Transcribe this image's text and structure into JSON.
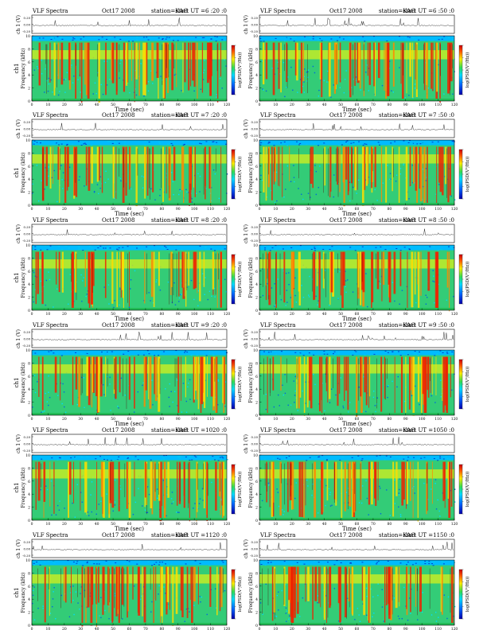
{
  "chart_data": [
    {
      "type": "heatmap",
      "header": {
        "left": "VLF  Spectra",
        "date": "Oct17 2008",
        "station": "station=KAG",
        "start": "start  UT  =6 :20 :0"
      },
      "ylabel_wave": "ch 1 (V)",
      "ylabel_freq": "Frequency (kHz)",
      "ylabel_ch": "ch1",
      "xlabel": "Time  (sec)",
      "colorbar_label": "log(PSD(V²/Hz))",
      "xlim": [
        0,
        120
      ],
      "xticks": [
        "0",
        "10",
        "20",
        "30",
        "40",
        "50",
        "60",
        "70",
        "80",
        "90",
        "100",
        "110",
        "120"
      ],
      "ylim": [
        0,
        10
      ],
      "yticks": [
        "0",
        "2",
        "4",
        "6",
        "8",
        "10"
      ],
      "wave_ticks": [
        "0.20",
        "0.00",
        "-0.20"
      ]
    },
    {
      "type": "heatmap",
      "header": {
        "left": "VLF  Spectra",
        "date": "Oct17 2008",
        "station": "station=KAG",
        "start": "start  UT  =6 :50 :0"
      },
      "ylabel_wave": "ch 1 (V)",
      "ylabel_freq": "Frequency (kHz)",
      "ylabel_ch": "",
      "xlabel": "Time  (sec)",
      "colorbar_label": "log(PSD(V²/Hz))",
      "xlim": [
        0,
        120
      ],
      "xticks": [
        "0",
        "10",
        "20",
        "30",
        "40",
        "50",
        "60",
        "70",
        "80",
        "90",
        "100",
        "110",
        "120"
      ],
      "ylim": [
        0,
        10
      ],
      "yticks": [
        "0",
        "2",
        "4",
        "6",
        "8",
        "10"
      ],
      "wave_ticks": [
        "0.20",
        "0.00",
        "-0.20"
      ]
    },
    {
      "type": "heatmap",
      "header": {
        "left": "VLF  Spectra",
        "date": "Oct17 2008",
        "station": "station=KAG",
        "start": "start  UT  =7 :20 :0"
      },
      "ylabel_wave": "ch 1 (V)",
      "ylabel_freq": "Frequency (kHz)",
      "ylabel_ch": "ch1",
      "xlabel": "Time  (sec)",
      "colorbar_label": "log(PSD(V²/Hz))",
      "xlim": [
        0,
        120
      ],
      "xticks": [
        "0",
        "10",
        "20",
        "30",
        "40",
        "50",
        "60",
        "70",
        "80",
        "90",
        "100",
        "110",
        "120"
      ],
      "ylim": [
        0,
        10
      ],
      "yticks": [
        "0",
        "2",
        "4",
        "6",
        "8",
        "10"
      ],
      "wave_ticks": [
        "0.20",
        "0.00",
        "-0.20"
      ]
    },
    {
      "type": "heatmap",
      "header": {
        "left": "VLF  Spectra",
        "date": "Oct17 2008",
        "station": "station=KAG",
        "start": "start  UT  =7 :50 :0"
      },
      "ylabel_wave": "ch 1 (V)",
      "ylabel_freq": "Frequency (kHz)",
      "ylabel_ch": "",
      "xlabel": "Time  (sec)",
      "colorbar_label": "log(PSD(V²/Hz))",
      "xlim": [
        0,
        120
      ],
      "xticks": [
        "0",
        "10",
        "20",
        "30",
        "40",
        "50",
        "60",
        "70",
        "80",
        "90",
        "100",
        "110",
        "120"
      ],
      "ylim": [
        0,
        10
      ],
      "yticks": [
        "0",
        "2",
        "4",
        "6",
        "8",
        "10"
      ],
      "wave_ticks": [
        "0.20",
        "0.00",
        "-0.20"
      ]
    },
    {
      "type": "heatmap",
      "header": {
        "left": "VLF  Spectra",
        "date": "Oct17 2008",
        "station": "station=KAG",
        "start": "start  UT  =8 :20 :0"
      },
      "ylabel_wave": "ch 1 (V)",
      "ylabel_freq": "Frequency (kHz)",
      "ylabel_ch": "ch1",
      "xlabel": "Time  (sec)",
      "colorbar_label": "log(PSD(V²/Hz))",
      "xlim": [
        0,
        120
      ],
      "xticks": [
        "0",
        "10",
        "20",
        "30",
        "40",
        "50",
        "60",
        "70",
        "80",
        "90",
        "100",
        "110",
        "120"
      ],
      "ylim": [
        0,
        10
      ],
      "yticks": [
        "0",
        "2",
        "4",
        "6",
        "8",
        "10"
      ],
      "wave_ticks": [
        "0.20",
        "0.00",
        "-0.20"
      ]
    },
    {
      "type": "heatmap",
      "header": {
        "left": "VLF  Spectra",
        "date": "Oct17 2008",
        "station": "station=KAG",
        "start": "start  UT  =8 :50 :0"
      },
      "ylabel_wave": "ch 1 (V)",
      "ylabel_freq": "Frequency (kHz)",
      "ylabel_ch": "",
      "xlabel": "Time  (sec)",
      "colorbar_label": "log(PSD(V²/Hz))",
      "xlim": [
        0,
        120
      ],
      "xticks": [
        "0",
        "10",
        "20",
        "30",
        "40",
        "50",
        "60",
        "70",
        "80",
        "90",
        "100",
        "110",
        "120"
      ],
      "ylim": [
        0,
        10
      ],
      "yticks": [
        "0",
        "2",
        "4",
        "6",
        "8",
        "10"
      ],
      "wave_ticks": [
        "0.20",
        "0.00",
        "-0.20"
      ]
    },
    {
      "type": "heatmap",
      "header": {
        "left": "VLF  Spectra",
        "date": "Oct17 2008",
        "station": "station=KAG",
        "start": "start  UT  =9 :20 :0"
      },
      "ylabel_wave": "ch 1 (V)",
      "ylabel_freq": "Frequency (kHz)",
      "ylabel_ch": "ch1",
      "xlabel": "Time  (sec)",
      "colorbar_label": "log(PSD(V²/Hz))",
      "xlim": [
        0,
        120
      ],
      "xticks": [
        "0",
        "10",
        "20",
        "30",
        "40",
        "50",
        "60",
        "70",
        "80",
        "90",
        "100",
        "110",
        "120"
      ],
      "ylim": [
        0,
        10
      ],
      "yticks": [
        "0",
        "2",
        "4",
        "6",
        "8",
        "10"
      ],
      "wave_ticks": [
        "0.20",
        "0.00",
        "-0.20"
      ]
    },
    {
      "type": "heatmap",
      "header": {
        "left": "VLF  Spectra",
        "date": "Oct17 2008",
        "station": "station=KAG",
        "start": "start  UT  =9 :50 :0"
      },
      "ylabel_wave": "ch 1 (V)",
      "ylabel_freq": "Frequency (kHz)",
      "ylabel_ch": "",
      "xlabel": "Time  (sec)",
      "colorbar_label": "log(PSD(V²/Hz))",
      "xlim": [
        0,
        120
      ],
      "xticks": [
        "0",
        "10",
        "20",
        "30",
        "40",
        "50",
        "60",
        "70",
        "80",
        "90",
        "100",
        "110",
        "120"
      ],
      "ylim": [
        0,
        10
      ],
      "yticks": [
        "0",
        "2",
        "4",
        "6",
        "8",
        "10"
      ],
      "wave_ticks": [
        "0.20",
        "0.00",
        "-0.20"
      ]
    },
    {
      "type": "heatmap",
      "header": {
        "left": "VLF  Spectra",
        "date": "Oct17 2008",
        "station": "station=KAG",
        "start": "start  UT  =1020 :0"
      },
      "ylabel_wave": "ch 1 (V)",
      "ylabel_freq": "Frequency (kHz)",
      "ylabel_ch": "ch1",
      "xlabel": "Time  (sec)",
      "colorbar_label": "log(PSD(V²/Hz))",
      "xlim": [
        0,
        120
      ],
      "xticks": [
        "0",
        "10",
        "20",
        "30",
        "40",
        "50",
        "60",
        "70",
        "80",
        "90",
        "100",
        "110",
        "120"
      ],
      "ylim": [
        0,
        10
      ],
      "yticks": [
        "0",
        "2",
        "4",
        "6",
        "8",
        "10"
      ],
      "wave_ticks": [
        "0.20",
        "0.00",
        "-0.20"
      ]
    },
    {
      "type": "heatmap",
      "header": {
        "left": "VLF  Spectra",
        "date": "Oct17 2008",
        "station": "station=KAG",
        "start": "start  UT  =1050 :0"
      },
      "ylabel_wave": "ch 1 (V)",
      "ylabel_freq": "Frequency (kHz)",
      "ylabel_ch": "",
      "xlabel": "Time  (sec)",
      "colorbar_label": "log(PSD(V²/Hz))",
      "xlim": [
        0,
        120
      ],
      "xticks": [
        "0",
        "10",
        "20",
        "30",
        "40",
        "50",
        "60",
        "70",
        "80",
        "90",
        "100",
        "110",
        "120"
      ],
      "ylim": [
        0,
        10
      ],
      "yticks": [
        "0",
        "2",
        "4",
        "6",
        "8",
        "10"
      ],
      "wave_ticks": [
        "0.20",
        "0.00",
        "-0.20"
      ]
    },
    {
      "type": "heatmap",
      "header": {
        "left": "VLF  Spectra",
        "date": "Oct17 2008",
        "station": "station=KAG",
        "start": "start  UT  =1120 :0"
      },
      "ylabel_wave": "ch 1 (V)",
      "ylabel_freq": "Frequency (kHz)",
      "ylabel_ch": "ch1",
      "xlabel": "Time  (sec)",
      "colorbar_label": "log(PSD(V²/Hz))",
      "xlim": [
        0,
        120
      ],
      "xticks": [
        "0",
        "10",
        "20",
        "30",
        "40",
        "50",
        "60",
        "70",
        "80",
        "90",
        "100",
        "110",
        "120"
      ],
      "ylim": [
        0,
        10
      ],
      "yticks": [
        "0",
        "2",
        "4",
        "6",
        "8",
        "10"
      ],
      "wave_ticks": [
        "0.20",
        "0.00",
        "-0.20"
      ]
    },
    {
      "type": "heatmap",
      "header": {
        "left": "VLF  Spectra",
        "date": "Oct17 2008",
        "station": "station=KAG",
        "start": "start  UT  =1150 :0"
      },
      "ylabel_wave": "ch 1 (V)",
      "ylabel_freq": "Frequency (kHz)",
      "ylabel_ch": "",
      "xlabel": "Time  (sec)",
      "colorbar_label": "log(PSD(V²/Hz))",
      "xlim": [
        0,
        120
      ],
      "xticks": [
        "0",
        "10",
        "20",
        "30",
        "40",
        "50",
        "60",
        "70",
        "80",
        "90",
        "100",
        "110",
        "120"
      ],
      "ylim": [
        0,
        10
      ],
      "yticks": [
        "0",
        "2",
        "4",
        "6",
        "8",
        "10"
      ],
      "wave_ticks": [
        "0.20",
        "0.00",
        "-0.20"
      ]
    }
  ],
  "colors": {
    "low": "#0000cc",
    "mid_low": "#00ccff",
    "mid": "#33cc66",
    "mid_high": "#ffee00",
    "high": "#ff2200",
    "peak": "#cc0000"
  }
}
